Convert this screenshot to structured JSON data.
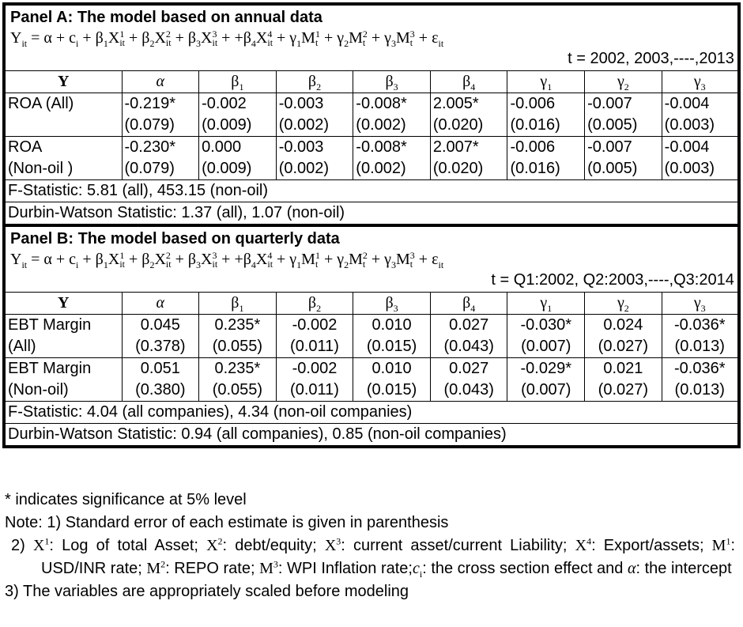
{
  "panels": [
    {
      "title": "Panel A: The model based on annual data",
      "equation": [
        {
          "text": "Y",
          "sub": "it"
        },
        {
          "text": " = α + c",
          "sub": "i"
        },
        {
          "text": " + β",
          "sub": "1"
        },
        {
          "text": "X",
          "sup": "1",
          "sub": "it"
        },
        {
          "text": "  + β",
          "sub": "2"
        },
        {
          "text": "X",
          "sup": "2",
          "sub": "it"
        },
        {
          "text": " + β",
          "sub": "3"
        },
        {
          "text": "X",
          "sup": "3",
          "sub": "it"
        },
        {
          "text": " + +β",
          "sub": "4"
        },
        {
          "text": "X",
          "sup": "4",
          "sub": "it"
        },
        {
          "text": " + γ",
          "sub": "1"
        },
        {
          "text": "M",
          "sup": "1",
          "sub": "t"
        },
        {
          "text": " + γ",
          "sub": "2"
        },
        {
          "text": "M",
          "sup": "2",
          "sub": "t"
        },
        {
          "text": " + γ",
          "sub": "3"
        },
        {
          "text": "M",
          "sup": "3",
          "sub": "t"
        },
        {
          "text": " + ε",
          "sub": "it"
        }
      ],
      "period": "t = 2002, 2003,----,2013",
      "header": [
        {
          "text": "Y"
        },
        {
          "text": "α"
        },
        {
          "text": "β",
          "sub": "1"
        },
        {
          "text": "β",
          "sub": "2"
        },
        {
          "text": "β",
          "sub": "3"
        },
        {
          "text": "β",
          "sub": "4"
        },
        {
          "text": "γ",
          "sub": "1"
        },
        {
          "text": "γ",
          "sub": "2"
        },
        {
          "text": "γ",
          "sub": "3"
        }
      ],
      "rows": [
        {
          "label": [
            "ROA (All)"
          ],
          "cells": [
            [
              "-0.219*",
              "(0.079)"
            ],
            [
              "-0.002",
              "(0.009)"
            ],
            [
              "-0.003",
              "(0.002)"
            ],
            [
              "-0.008*",
              "(0.002)"
            ],
            [
              "2.005*",
              "(0.020)"
            ],
            [
              "-0.006",
              "(0.016)"
            ],
            [
              "-0.007",
              "(0.005)"
            ],
            [
              "-0.004",
              "(0.003)"
            ]
          ]
        },
        {
          "label": [
            "ROA",
            "(Non-oil )"
          ],
          "cells": [
            [
              "-0.230*",
              "(0.079)"
            ],
            [
              "0.000",
              "(0.009)"
            ],
            [
              "-0.003",
              "(0.002)"
            ],
            [
              "-0.008*",
              "(0.002)"
            ],
            [
              "2.007*",
              "(0.020)"
            ],
            [
              "-0.006",
              "(0.016)"
            ],
            [
              "-0.007",
              "(0.005)"
            ],
            [
              "-0.004",
              "(0.003)"
            ]
          ]
        }
      ],
      "stats": [
        "F-Statistic: 5.81 (all), 453.15 (non-oil)",
        "Durbin-Watson Statistic: 1.37 (all), 1.07 (non-oil)"
      ]
    },
    {
      "title": "Panel B: The model based on quarterly data",
      "equation": [
        {
          "text": "Y",
          "sub": "it"
        },
        {
          "text": " = α + c",
          "sub": "i"
        },
        {
          "text": " + β",
          "sub": "1"
        },
        {
          "text": "X",
          "sup": "1",
          "sub": "it"
        },
        {
          "text": "  + β",
          "sub": "2"
        },
        {
          "text": "X",
          "sup": "2",
          "sub": "it"
        },
        {
          "text": " + β",
          "sub": "3"
        },
        {
          "text": "X",
          "sup": "3",
          "sub": "it"
        },
        {
          "text": " + +β",
          "sub": "4"
        },
        {
          "text": "X",
          "sup": "4",
          "sub": "it"
        },
        {
          "text": " + γ",
          "sub": "1"
        },
        {
          "text": "M",
          "sup": "1",
          "sub": "t"
        },
        {
          "text": " + γ",
          "sub": "2"
        },
        {
          "text": "M",
          "sup": "2",
          "sub": "t"
        },
        {
          "text": " + γ",
          "sub": "3"
        },
        {
          "text": "M",
          "sup": "3",
          "sub": "t"
        },
        {
          "text": " + ε",
          "sub": "it"
        }
      ],
      "period": "t = Q1:2002, Q2:2003,----,Q3:2014",
      "header": [
        {
          "text": "Y"
        },
        {
          "text": "α"
        },
        {
          "text": "β",
          "sub": "1"
        },
        {
          "text": "β",
          "sub": "2"
        },
        {
          "text": "β",
          "sub": "3"
        },
        {
          "text": "β",
          "sub": "4"
        },
        {
          "text": "γ",
          "sub": "1"
        },
        {
          "text": "γ",
          "sub": "2"
        },
        {
          "text": "γ",
          "sub": "3"
        }
      ],
      "rows": [
        {
          "label": [
            "EBT Margin",
            "(All)"
          ],
          "cells": [
            [
              "0.045",
              "(0.378)"
            ],
            [
              "0.235*",
              "(0.055)"
            ],
            [
              "-0.002",
              "(0.011)"
            ],
            [
              "0.010",
              "(0.015)"
            ],
            [
              "0.027",
              "(0.043)"
            ],
            [
              "-0.030*",
              "(0.007)"
            ],
            [
              "0.024",
              "(0.027)"
            ],
            [
              "-0.036*",
              "(0.013)"
            ]
          ]
        },
        {
          "label": [
            "EBT Margin",
            "(Non-oil)"
          ],
          "cells": [
            [
              "0.051",
              "(0.380)"
            ],
            [
              "0.235*",
              "(0.055)"
            ],
            [
              "-0.002",
              "(0.011)"
            ],
            [
              "0.010",
              "(0.015)"
            ],
            [
              "0.027",
              "(0.043)"
            ],
            [
              "-0.029*",
              "(0.007)"
            ],
            [
              "0.021",
              "(0.027)"
            ],
            [
              "-0.036*",
              "(0.013)"
            ]
          ]
        }
      ],
      "stats": [
        "F-Statistic: 4.04 (all companies), 4.34 (non-oil companies)",
        "Durbin-Watson Statistic: 0.94 (all companies), 0.85 (non-oil companies)"
      ]
    }
  ],
  "notes": [
    [
      "* indicates significance at 5% level"
    ],
    [
      "Note: 1) Standard error of each estimate is given in parenthesis"
    ],
    [
      "2) ",
      {
        "text": "X",
        "sup": "1"
      },
      ":  Log of total Asset; ",
      {
        "text": "X",
        "sup": "2"
      },
      ":  debt/equity; ",
      {
        "text": "X",
        "sup": "3"
      },
      ":  current asset/current Liability; ",
      {
        "text": "X",
        "sup": "4"
      },
      ":  Export/assets; ",
      {
        "text": "M",
        "sup": "1"
      },
      ": USD/INR rate; ",
      {
        "text": "M",
        "sup": "2"
      },
      ": REPO rate; ",
      {
        "text": "M",
        "sup": "3"
      },
      ": WPI Inflation rate;",
      {
        "text": "c",
        "sub": "i"
      },
      ": the cross section effect and ",
      {
        "text": "α"
      },
      ": the intercept"
    ],
    [
      " 3) The variables are appropriately scaled before modeling"
    ]
  ]
}
